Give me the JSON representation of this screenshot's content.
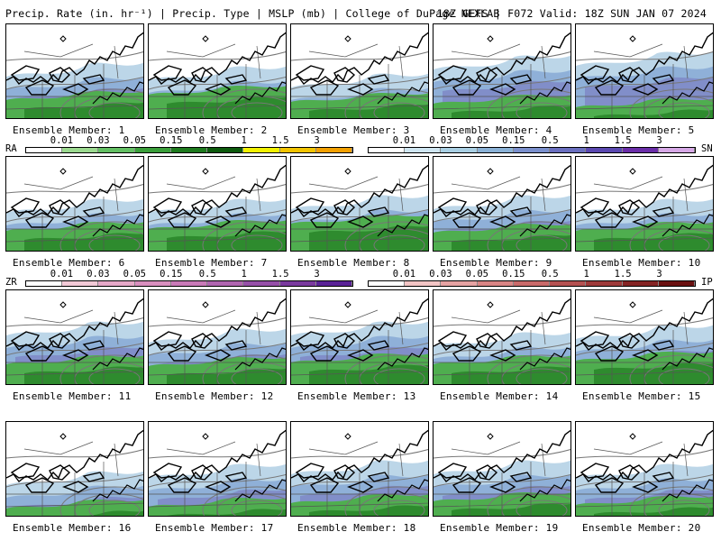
{
  "header": {
    "left": "Precip. Rate (in. hr⁻¹) | Precip. Type | MSLP (mb) | College of DuPage NEXLAB",
    "right": "18Z GEFS | F072 Valid: 18Z SUN JAN 07 2024"
  },
  "members": [
    {
      "label": "Ensemble Member: 1"
    },
    {
      "label": "Ensemble Member: 2"
    },
    {
      "label": "Ensemble Member: 3"
    },
    {
      "label": "Ensemble Member: 4"
    },
    {
      "label": "Ensemble Member: 5"
    },
    {
      "label": "Ensemble Member: 6"
    },
    {
      "label": "Ensemble Member: 7"
    },
    {
      "label": "Ensemble Member: 8"
    },
    {
      "label": "Ensemble Member: 9"
    },
    {
      "label": "Ensemble Member: 10"
    },
    {
      "label": "Ensemble Member: 11"
    },
    {
      "label": "Ensemble Member: 12"
    },
    {
      "label": "Ensemble Member: 13"
    },
    {
      "label": "Ensemble Member: 14"
    },
    {
      "label": "Ensemble Member: 15"
    },
    {
      "label": "Ensemble Member: 16"
    },
    {
      "label": "Ensemble Member: 17"
    },
    {
      "label": "Ensemble Member: 18"
    },
    {
      "label": "Ensemble Member: 19"
    },
    {
      "label": "Ensemble Member: 20"
    }
  ],
  "legends": {
    "rain": {
      "label": "RA",
      "ticks": [
        "0.01",
        "0.03",
        "0.05",
        "0.15",
        "0.5",
        "1",
        "1.5",
        "3"
      ],
      "colors": [
        "#ffffff",
        "#9bd98f",
        "#63bf63",
        "#3a9e3a",
        "#1e7a1e",
        "#0d5a0d",
        "#f2f200",
        "#f2c400",
        "#f2a000"
      ]
    },
    "snow": {
      "label": "SN",
      "ticks": [
        "0.01",
        "0.03",
        "0.05",
        "0.15",
        "0.5",
        "1",
        "1.5",
        "3"
      ],
      "colors": [
        "#ffffff",
        "#cfe6f2",
        "#a9cfe3",
        "#8ab1d6",
        "#7a8fcc",
        "#6a6fbf",
        "#5a48b0",
        "#6a2ea8",
        "#d6a8e6"
      ]
    },
    "freezing_rain": {
      "label": "ZR",
      "ticks": [
        "0.01",
        "0.03",
        "0.05",
        "0.15",
        "0.5",
        "1",
        "1.5",
        "3"
      ],
      "colors": [
        "#ffffff",
        "#f2c9d6",
        "#e6a8c8",
        "#d98fbf",
        "#c97ab8",
        "#b065b0",
        "#9650a8",
        "#7a3a9e",
        "#5a2296"
      ]
    },
    "sleet": {
      "label": "IP",
      "ticks": [
        "0.01",
        "0.03",
        "0.05",
        "0.15",
        "0.5",
        "1",
        "1.5",
        "3"
      ],
      "colors": [
        "#ffffff",
        "#f2c4c4",
        "#e6a3a3",
        "#d98585",
        "#c96a6a",
        "#b55252",
        "#9e3a3a",
        "#852424",
        "#6a1010"
      ]
    }
  }
}
